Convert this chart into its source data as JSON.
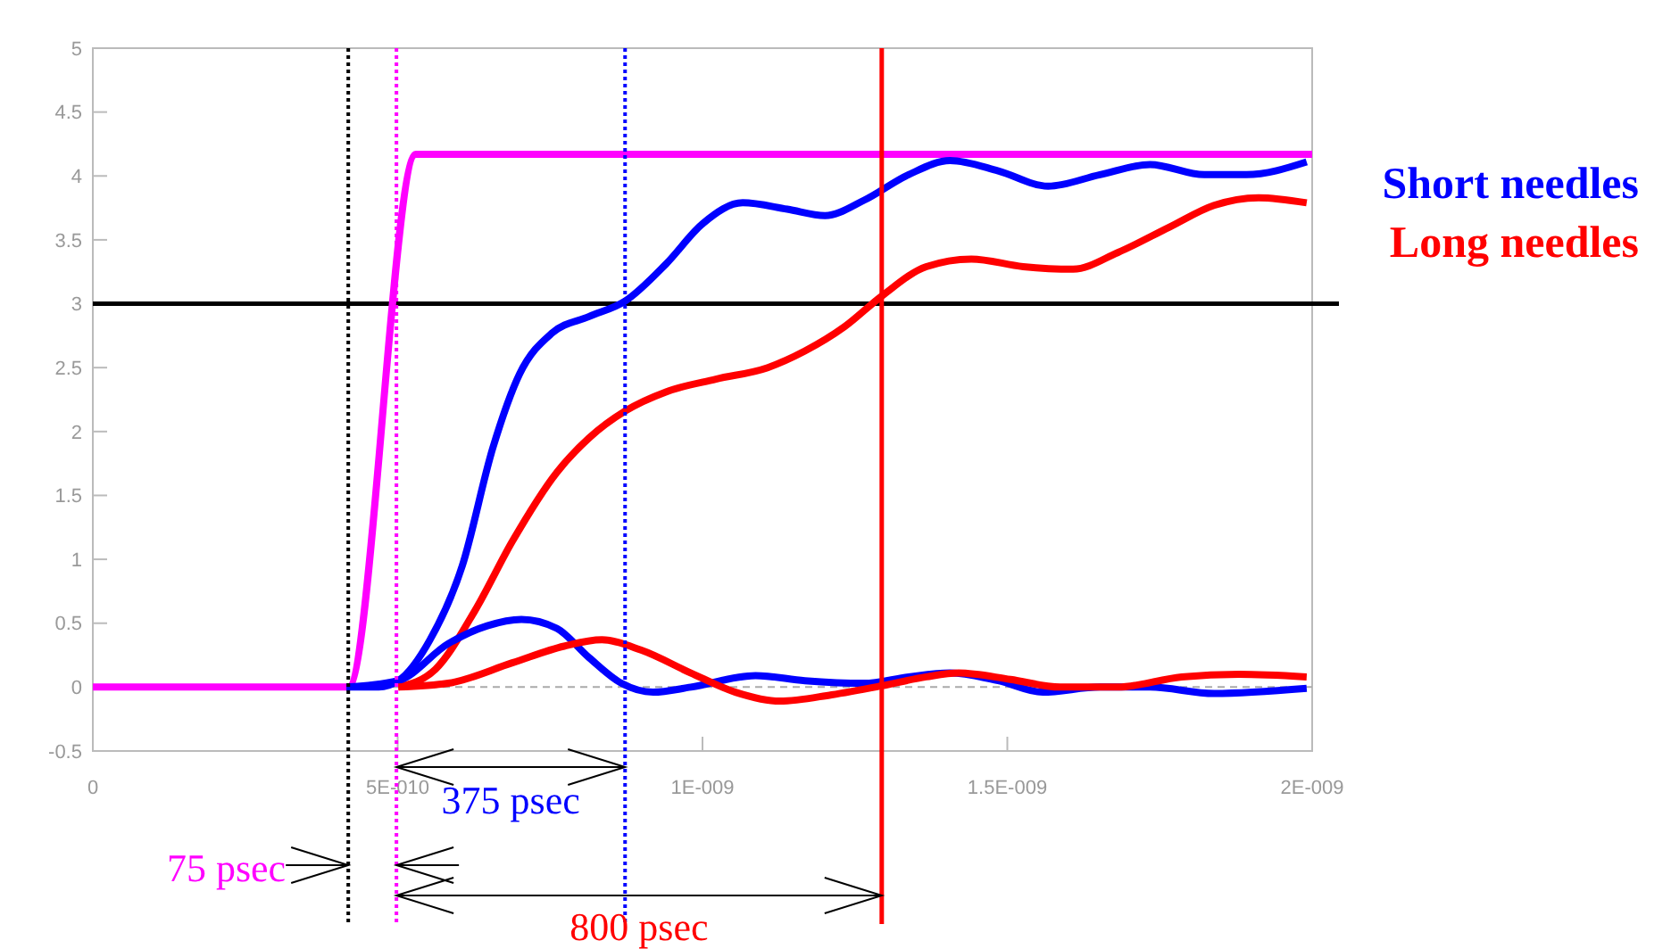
{
  "chart_data": {
    "type": "line",
    "xlim": [
      0,
      2e-09
    ],
    "ylim": [
      -0.5,
      5
    ],
    "xticks": [
      0,
      {
        "value": 5e-10,
        "label": "5E-010"
      },
      {
        "value": 1e-09,
        "label": "1E-009"
      },
      {
        "value": 1.5e-09,
        "label": "1.5E-009"
      },
      {
        "value": 2e-09,
        "label": "2E-009"
      }
    ],
    "yticks": [
      -0.5,
      0,
      0.5,
      1,
      1.5,
      2,
      2.5,
      3,
      3.5,
      4,
      4.5,
      5
    ],
    "legend": "right",
    "grid": false,
    "marker": "none",
    "line_style": "solid",
    "series": [
      {
        "color": "#ff00ff",
        "x": [
          0,
          4.19e-10,
          5.3e-10,
          2e-09
        ],
        "values": [
          0,
          0,
          4.17,
          4.17
        ]
      },
      {
        "name": "Short needles",
        "color": "#0000ff",
        "x": [
          4.16e-10,
          4.69e-10,
          5.01e-10,
          5.53e-10,
          6.06e-10,
          6.56e-10,
          7e-10,
          7.53e-10,
          8.14e-10,
          8.73e-10,
          9.4e-10,
          1.001e-09,
          1.066e-09,
          1.139e-09,
          1.201e-09,
          1.265e-09,
          1.338e-09,
          1.406e-09,
          1.485e-09,
          1.567e-09,
          1.652e-09,
          1.734e-09,
          1.823e-09,
          1.892e-09,
          1.991e-09
        ],
        "values": [
          0,
          0,
          0.05,
          0.37,
          0.95,
          1.87,
          2.45,
          2.77,
          2.9,
          3.02,
          3.31,
          3.63,
          3.79,
          3.74,
          3.69,
          3.81,
          4.01,
          4.12,
          4.04,
          3.92,
          4.01,
          4.09,
          4.01,
          4.01,
          4.11
        ]
      },
      {
        "name": "Long needles",
        "color": "#ff0000",
        "x": [
          5.01e-10,
          5.62e-10,
          6.27e-10,
          6.88e-10,
          7.61e-10,
          8.14e-10,
          8.73e-10,
          9.4e-10,
          1.022e-09,
          1.107e-09,
          1.168e-09,
          1.233e-09,
          1.294e-09,
          1.367e-09,
          1.441e-09,
          1.526e-09,
          1.608e-09,
          1.681e-09,
          1.766e-09,
          1.839e-09,
          1.912e-09,
          1.991e-09
        ],
        "values": [
          0,
          0.14,
          0.6,
          1.14,
          1.68,
          1.95,
          2.16,
          2.31,
          2.41,
          2.5,
          2.63,
          2.82,
          3.06,
          3.29,
          3.35,
          3.29,
          3.27,
          3.4,
          3.6,
          3.77,
          3.83,
          3.79
        ]
      },
      {
        "color": "#0000ff",
        "x": [
          4.16e-10,
          5.01e-10,
          5.83e-10,
          6.47e-10,
          7.03e-10,
          7.61e-10,
          8.14e-10,
          8.67e-10,
          9.19e-10,
          9.81e-10,
          1.087e-09,
          1.168e-09,
          1.265e-09,
          1.338e-09,
          1.406e-09,
          1.485e-09,
          1.558e-09,
          1.652e-09,
          1.734e-09,
          1.839e-09,
          1.991e-09
        ],
        "values": [
          0,
          0.05,
          0.34,
          0.48,
          0.53,
          0.46,
          0.23,
          0.03,
          -0.04,
          0,
          0.09,
          0.05,
          0.03,
          0.08,
          0.11,
          0.05,
          -0.04,
          0,
          0,
          -0.05,
          -0.01
        ]
      },
      {
        "color": "#ff0000",
        "x": [
          5.01e-10,
          5.83e-10,
          6.88e-10,
          7.73e-10,
          8.35e-10,
          8.99e-10,
          9.81e-10,
          1.054e-09,
          1.127e-09,
          1.212e-09,
          1.294e-09,
          1.367e-09,
          1.42e-09,
          1.505e-09,
          1.587e-09,
          1.681e-09,
          1.786e-09,
          1.88e-09,
          1.991e-09
        ],
        "values": [
          0,
          0.03,
          0.19,
          0.32,
          0.37,
          0.29,
          0.11,
          -0.04,
          -0.11,
          -0.06,
          0.01,
          0.08,
          0.11,
          0.06,
          0,
          0,
          0.08,
          0.1,
          0.08
        ]
      }
    ],
    "ref_lines": [
      {
        "axis": "y",
        "value": 3,
        "color": "#000000",
        "line_style": "solid"
      },
      {
        "axis": "y",
        "value": 0,
        "color": "#aaaaaa",
        "line_style": "dashed"
      },
      {
        "axis": "x",
        "value": 4.19e-10,
        "color": "#000000",
        "line_style": "dotted"
      },
      {
        "axis": "x",
        "value": 4.98e-10,
        "color": "#ff00ff",
        "line_style": "dotted"
      },
      {
        "axis": "x",
        "value": 8.73e-10,
        "color": "#0000ff",
        "line_style": "dotted"
      },
      {
        "axis": "x",
        "value": 1.294e-09,
        "color": "#ff0000",
        "line_style": "solid"
      }
    ],
    "annotations": [
      "75 psec",
      "375 psec",
      "800 psec"
    ]
  }
}
